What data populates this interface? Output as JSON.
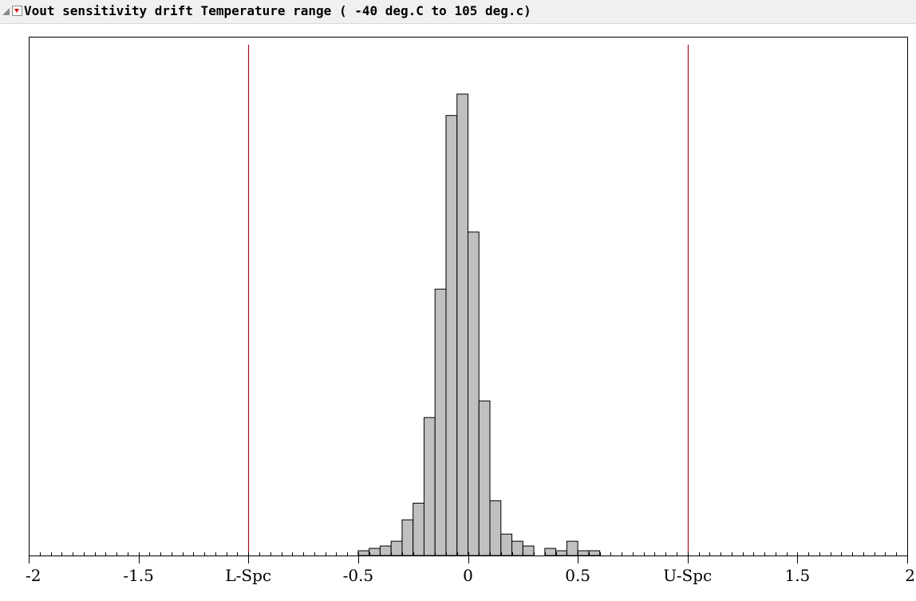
{
  "report": {
    "title": "Vout sensitivity drift Temperature range ( -40 deg.C to 105 deg.c)"
  },
  "colors": {
    "bar_fill": "#c0c0c0",
    "bar_stroke": "#000000",
    "spec_line": "#a01020",
    "frame": "#000000",
    "menu_arrow": "#d01010"
  },
  "icons": {
    "disclosure": "disclosure-triangle-icon",
    "menu": "red-menu-arrow-icon"
  },
  "chart_data": {
    "type": "bar",
    "orientation": "histogram",
    "title": "Vout sensitivity drift Temperature range ( -40 deg.C to 105 deg.c)",
    "xlabel": "",
    "ylabel": "",
    "xlim": [
      -2,
      2
    ],
    "bin_width": 0.05,
    "bin_starts": [
      -0.5,
      -0.45,
      -0.4,
      -0.35,
      -0.3,
      -0.25,
      -0.2,
      -0.15,
      -0.1,
      -0.05,
      0,
      0.05,
      0.1,
      0.15,
      0.2,
      0.25,
      0.3,
      0.35,
      0.4,
      0.45,
      0.5,
      0.55
    ],
    "values": [
      1.0,
      1.5,
      2.0,
      3.0,
      7.5,
      11.0,
      29.0,
      56.0,
      92.5,
      97.0,
      68.0,
      32.5,
      11.5,
      4.5,
      3.0,
      2.0,
      0,
      1.5,
      1.0,
      3.0,
      1.0,
      1.0
    ],
    "value_scale": "relative counts (y axis not printed)",
    "ylim": [
      0,
      100
    ],
    "reference_lines": [
      {
        "label": "L-Spc",
        "x": -1
      },
      {
        "label": "U-Spc",
        "x": 1
      }
    ],
    "ticks": [
      {
        "x": -2,
        "label": "-2"
      },
      {
        "x": -1.5,
        "label": "-1.5"
      },
      {
        "x": -1,
        "label": "L-Spc"
      },
      {
        "x": -0.5,
        "label": "-0.5"
      },
      {
        "x": 0,
        "label": "0"
      },
      {
        "x": 0.5,
        "label": "0.5"
      },
      {
        "x": 1,
        "label": "U-Spc"
      },
      {
        "x": 1.5,
        "label": "1.5"
      },
      {
        "x": 2,
        "label": "2"
      }
    ],
    "minor_tick_step": 0.05,
    "grid": false,
    "legend": "none"
  }
}
